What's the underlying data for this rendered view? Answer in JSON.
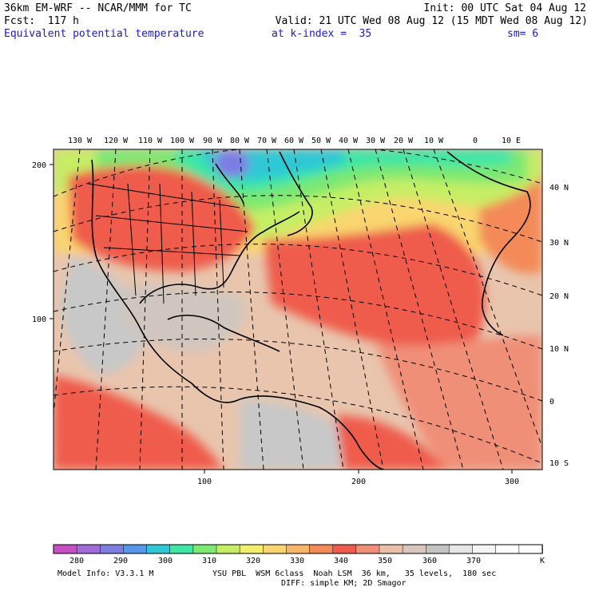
{
  "header": {
    "model_line": "36km EM-WRF -- NCAR/MMM for TC",
    "init_line": "Init: 00 UTC Sat 04 Aug 12",
    "fcst_line": "Fcst:  117 h",
    "valid_line": "Valid: 21 UTC Wed 08 Aug 12 (15 MDT Wed 08 Aug 12)",
    "field_name": "Equivalent potential temperature",
    "level": "at k-index =  35",
    "smoothing": "sm= 6"
  },
  "map": {
    "top_lon_labels": [
      "130 W",
      "120 W",
      "110 W",
      "100 W",
      "90 W",
      "80 W",
      "70 W",
      "60 W",
      "50 W",
      "40 W",
      "30 W",
      "20 W",
      "10 W",
      "0",
      "10 E"
    ],
    "right_lat_labels": [
      "40 N",
      "30 N",
      "20 N",
      "10 N",
      "0",
      "10 S"
    ],
    "left_grid_labels": [
      "200",
      "100"
    ],
    "bottom_grid_labels": [
      "100",
      "200",
      "300"
    ]
  },
  "colorbar": {
    "tick_labels": [
      "280",
      "290",
      "300",
      "310",
      "320",
      "330",
      "340",
      "350",
      "360",
      "370"
    ],
    "unit": "K",
    "colors": [
      "#c64fc6",
      "#a16cd8",
      "#7d7de3",
      "#5796e8",
      "#2fc8d6",
      "#3ee6a6",
      "#7de872",
      "#c6ee65",
      "#f3ee6a",
      "#f9d670",
      "#f8b468",
      "#f38a58",
      "#ef5b4c",
      "#f08f78",
      "#ebc0a9",
      "#d8c7bd",
      "#c3c3c3",
      "#e6e6e6",
      "#f4f4f4",
      "#ffffff",
      "#ffffff"
    ]
  },
  "footer": {
    "model_info": "Model Info: V3.3.1 M",
    "physics": "YSU PBL  WSM 6class  Noah LSM  36 km,   35 levels,  180 sec",
    "diff": "DIFF: simple KM; 2D Smagor"
  }
}
